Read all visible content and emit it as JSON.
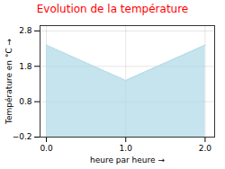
{
  "chart_data": {
    "type": "area",
    "title": "Evolution de la température",
    "xlabel": "heure par heure",
    "ylabel": "Température en °C",
    "x": [
      0,
      1,
      2
    ],
    "values": [
      2.4,
      1.4,
      2.4
    ],
    "color": "#add8e6",
    "line_style": "dotted",
    "xlim": [
      -0.08,
      2.12
    ],
    "ylim": [
      -0.2,
      2.95
    ],
    "xticks": [
      0,
      1,
      2
    ],
    "yticks": [
      -0.2,
      0.8,
      1.8,
      2.8
    ],
    "grid": true
  }
}
